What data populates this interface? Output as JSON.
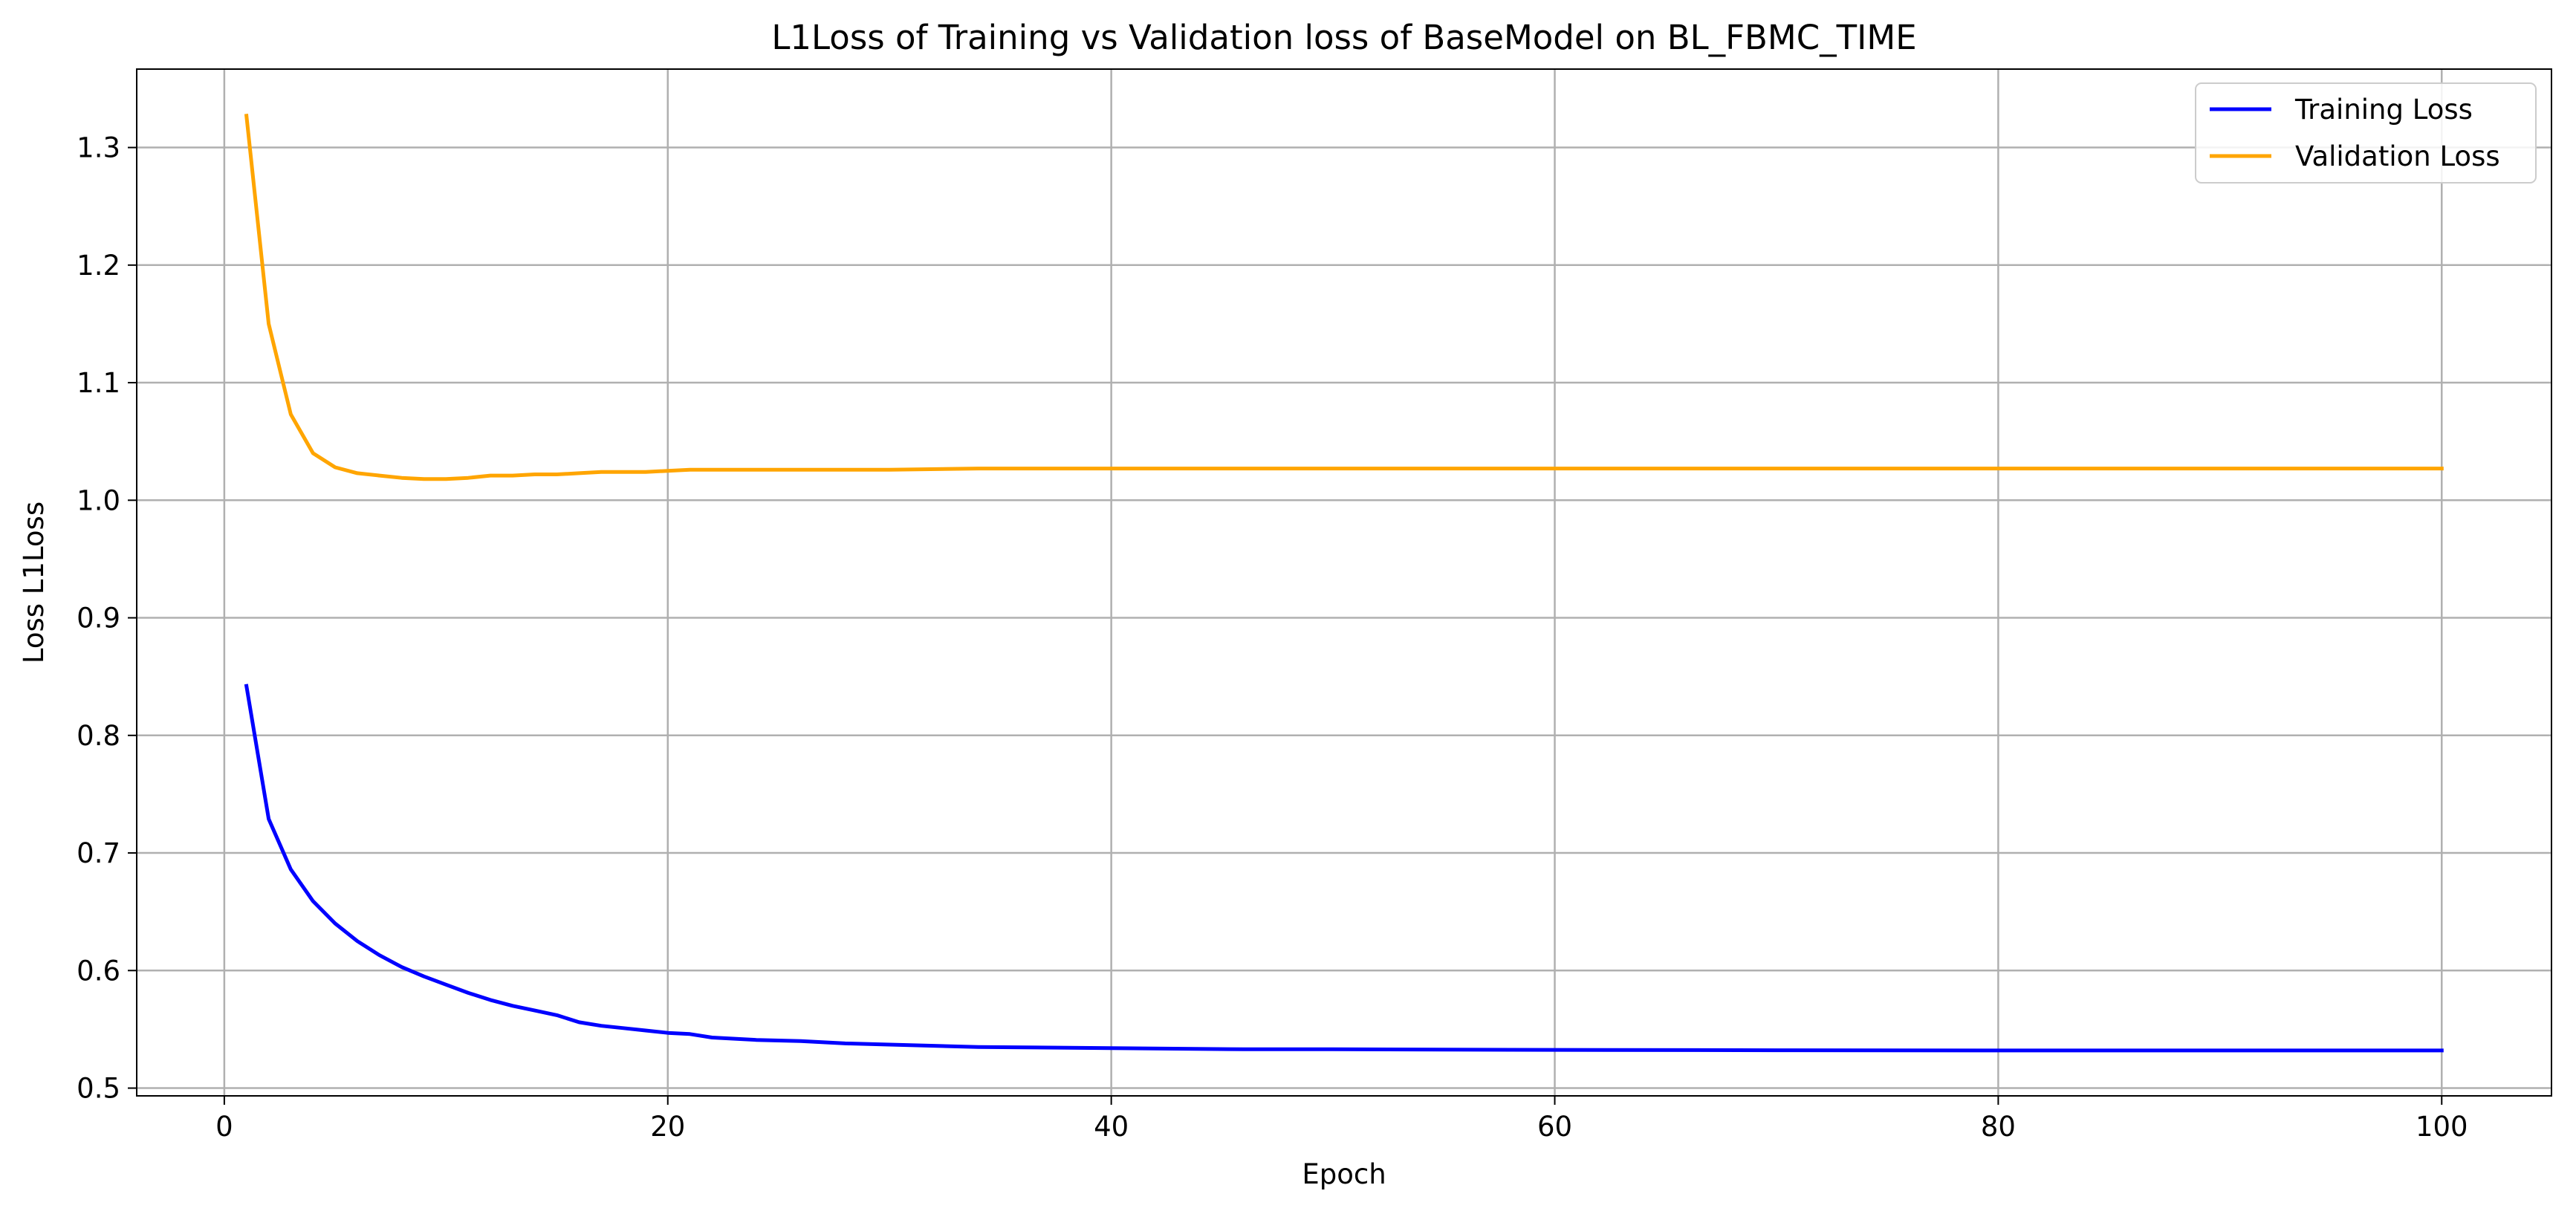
{
  "chart_data": {
    "type": "line",
    "title": "L1Loss of Training vs Validation loss of BaseModel on BL_FBMC_TIME",
    "xlabel": "Epoch",
    "ylabel": "Loss L1Loss",
    "xlim": [
      -3.95,
      104.95
    ],
    "ylim": [
      0.4934,
      1.3667
    ],
    "xticks": [
      0,
      20,
      40,
      60,
      80,
      100
    ],
    "yticks": [
      0.5,
      0.6,
      0.7,
      0.8,
      0.9,
      1.0,
      1.1,
      1.2,
      1.3
    ],
    "grid": true,
    "legend_position": "top-right",
    "series": [
      {
        "name": "Training Loss",
        "color": "#0000ff",
        "x": [
          1,
          2,
          3,
          4,
          5,
          6,
          7,
          8,
          9,
          10,
          11,
          12,
          13,
          14,
          15,
          16,
          17,
          18,
          19,
          20,
          21,
          22,
          24,
          26,
          28,
          30,
          34,
          40,
          46,
          50,
          60,
          70,
          80,
          90,
          100
        ],
        "y": [
          0.842,
          0.729,
          0.686,
          0.659,
          0.64,
          0.625,
          0.613,
          0.603,
          0.595,
          0.588,
          0.581,
          0.575,
          0.57,
          0.566,
          0.562,
          0.556,
          0.553,
          0.551,
          0.549,
          0.547,
          0.546,
          0.543,
          0.541,
          0.54,
          0.538,
          0.537,
          0.535,
          0.534,
          0.533,
          0.533,
          0.5325,
          0.5322,
          0.532,
          0.532,
          0.532
        ]
      },
      {
        "name": "Validation Loss",
        "color": "#ffa500",
        "x": [
          1,
          2,
          3,
          4,
          5,
          6,
          7,
          8,
          9,
          10,
          11,
          12,
          13,
          14,
          15,
          16,
          17,
          18,
          19,
          20,
          21,
          22,
          24,
          26,
          28,
          30,
          34,
          40,
          50,
          60,
          70,
          80,
          90,
          100
        ],
        "y": [
          1.327,
          1.15,
          1.073,
          1.04,
          1.028,
          1.023,
          1.021,
          1.019,
          1.018,
          1.018,
          1.019,
          1.021,
          1.021,
          1.022,
          1.022,
          1.023,
          1.024,
          1.024,
          1.024,
          1.025,
          1.026,
          1.026,
          1.026,
          1.026,
          1.026,
          1.026,
          1.027,
          1.027,
          1.027,
          1.027,
          1.027,
          1.027,
          1.027,
          1.027
        ]
      }
    ]
  }
}
